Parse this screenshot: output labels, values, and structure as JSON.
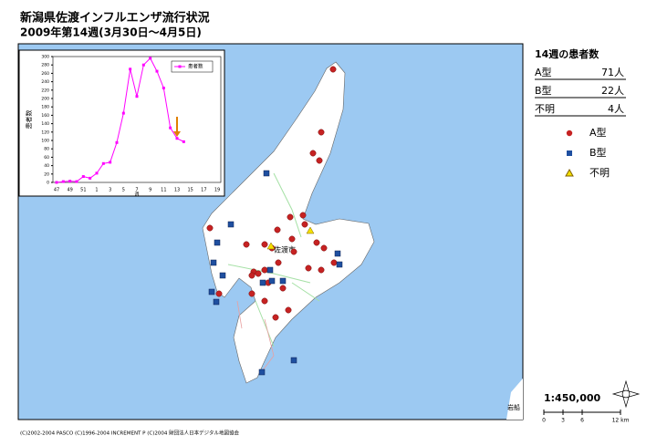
{
  "title": "新潟県佐渡インフルエンザ流行状況",
  "subtitle": "2009年第14週(3月30日～4月5日)",
  "summary": {
    "heading": "14週の患者数",
    "rows": [
      {
        "label": "A型",
        "count": "71人"
      },
      {
        "label": "B型",
        "count": "22人"
      },
      {
        "label": "不明",
        "count": "4人"
      }
    ]
  },
  "legend": [
    "A型",
    "B型",
    "不明"
  ],
  "map_labels": [
    "佐渡市",
    "岩船"
  ],
  "scale": "1:450,000",
  "scale_bar": [
    "0",
    "3",
    "6",
    "12 km"
  ],
  "footer": "(C)2002-2004 PASCO (C)1996-2004 INCREMENT P (C)2004 財団法人日本デジタル地図協会",
  "chart_data": {
    "type": "line",
    "categories": [
      "47",
      null,
      "49",
      null,
      "51",
      null,
      "1",
      null,
      "3",
      null,
      "5",
      null,
      "7",
      null,
      "9",
      null,
      "11",
      null,
      "13",
      null,
      "15",
      null,
      "17",
      null,
      "19"
    ],
    "series": [
      {
        "name": "患者数",
        "color": "#ff00ff",
        "values": [
          0,
          2,
          3,
          2,
          14,
          10,
          22,
          45,
          48,
          95,
          165,
          270,
          205,
          280,
          296,
          265,
          225,
          130,
          105,
          97,
          null,
          null,
          null,
          null,
          null
        ]
      }
    ],
    "ylim": [
      0,
      300
    ],
    "yticks": [
      0,
      20,
      40,
      60,
      80,
      100,
      120,
      140,
      160,
      180,
      200,
      220,
      240,
      260,
      280,
      300
    ],
    "ylabel": "患者数",
    "xlabel": "週",
    "legend": "upper right"
  }
}
